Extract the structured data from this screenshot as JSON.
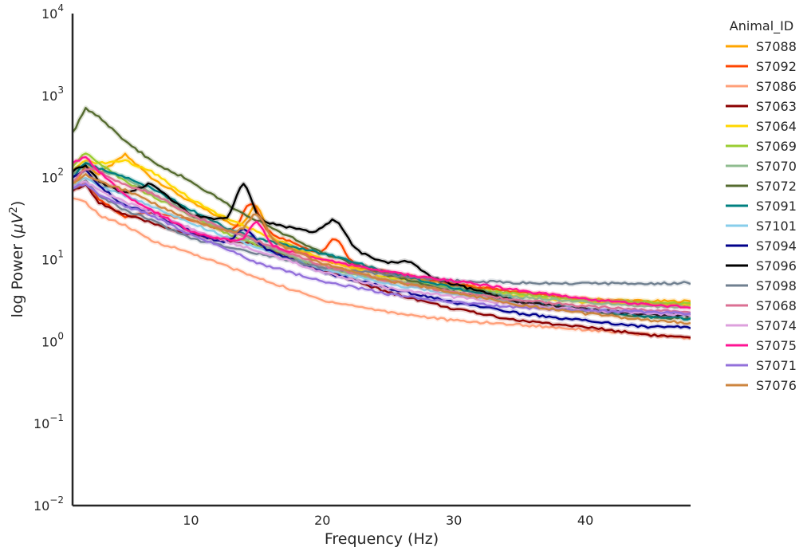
{
  "chart_data": {
    "type": "line",
    "title": "",
    "xlabel": "Frequency (Hz)",
    "ylabel_prefix": "log Power (",
    "ylabel_unit": "μV",
    "ylabel_exp": "2",
    "ylabel_suffix": ")",
    "xscale": "linear",
    "yscale": "log",
    "xlim": [
      1,
      48
    ],
    "ylim": [
      0.01,
      10000
    ],
    "grid": false,
    "legend_position": "outside-right",
    "x_ticks": [
      10,
      20,
      30,
      40
    ],
    "x_tick_labels": [
      "10",
      "20",
      "30",
      "40"
    ],
    "y_tick_base": "10",
    "y_tick_exps": [
      "−2",
      "−1",
      "0",
      "1",
      "2",
      "3",
      "4"
    ],
    "y_tick_values": [
      0.01,
      0.1,
      1,
      10,
      100,
      1000,
      10000
    ],
    "legend_title": "Animal_ID",
    "x_knots": [
      1,
      2,
      3,
      5,
      7,
      10,
      13,
      15,
      20,
      25,
      30,
      35,
      40,
      45,
      48
    ],
    "series": [
      {
        "name": "S7088",
        "color": "#FFA500",
        "y": [
          75,
          140,
          110,
          190,
          100,
          50,
          28,
          20,
          10,
          6.5,
          5,
          4,
          3.3,
          3.1,
          3.1
        ],
        "bumps": [
          {
            "x": 15,
            "w": 0.8,
            "a": 0.35
          }
        ]
      },
      {
        "name": "S7092",
        "color": "#FF4500",
        "y": [
          70,
          90,
          55,
          33,
          38,
          30,
          22,
          25,
          11,
          7,
          5,
          4,
          3.2,
          2.9,
          2.8
        ],
        "bumps": [
          {
            "x": 14.5,
            "w": 0.8,
            "a": 0.3
          },
          {
            "x": 21,
            "w": 0.8,
            "a": 0.25
          }
        ]
      },
      {
        "name": "S7086",
        "color": "#FFA07A",
        "y": [
          55,
          50,
          35,
          26,
          17,
          12,
          8,
          6,
          3.2,
          2.3,
          1.8,
          1.6,
          1.4,
          1.2,
          1.1
        ]
      },
      {
        "name": "S7063",
        "color": "#8B0000",
        "y": [
          70,
          80,
          50,
          35,
          28,
          20,
          17,
          15,
          7.5,
          4,
          2.5,
          1.8,
          1.5,
          1.2,
          1.1
        ]
      },
      {
        "name": "S7064",
        "color": "#FFD700",
        "y": [
          120,
          160,
          150,
          160,
          120,
          55,
          30,
          22,
          10,
          6,
          4.5,
          3.5,
          3,
          2.8,
          2.8
        ]
      },
      {
        "name": "S7069",
        "color": "#9ACD32",
        "y": [
          140,
          200,
          150,
          90,
          60,
          35,
          20,
          15,
          8,
          5.5,
          4.5,
          3.8,
          3.2,
          3,
          2.9
        ]
      },
      {
        "name": "S7070",
        "color": "#8FBC8F",
        "y": [
          110,
          150,
          120,
          100,
          65,
          35,
          22,
          16,
          8,
          5.5,
          4.5,
          3.5,
          3,
          2.7,
          2.6
        ]
      },
      {
        "name": "S7072",
        "color": "#556B2F",
        "y": [
          350,
          690,
          560,
          280,
          160,
          90,
          45,
          30,
          12,
          6.5,
          4,
          3,
          2.3,
          2,
          1.9
        ]
      },
      {
        "name": "S7091",
        "color": "#008080",
        "y": [
          100,
          150,
          130,
          100,
          75,
          40,
          23,
          18,
          12,
          7,
          4.5,
          3.2,
          2.5,
          2,
          1.9
        ]
      },
      {
        "name": "S7101",
        "color": "#87CEEB",
        "y": [
          80,
          100,
          80,
          60,
          45,
          28,
          18,
          14,
          7.5,
          5,
          3.8,
          3,
          2.5,
          2.2,
          2.1
        ]
      },
      {
        "name": "S7094",
        "color": "#00008B",
        "y": [
          100,
          120,
          80,
          45,
          38,
          22,
          15,
          15,
          7,
          4.5,
          3,
          2.2,
          1.8,
          1.5,
          1.5
        ],
        "bumps": [
          {
            "x": 14,
            "w": 0.9,
            "a": 0.2
          }
        ]
      },
      {
        "name": "S7096",
        "color": "#000000",
        "y": [
          120,
          140,
          90,
          65,
          85,
          35,
          30,
          30,
          20,
          8.5,
          5,
          3,
          2.5,
          2.1,
          2.1
        ],
        "bumps": [
          {
            "x": 14,
            "w": 0.8,
            "a": 0.45
          },
          {
            "x": 21,
            "w": 1.0,
            "a": 0.25
          },
          {
            "x": 26.5,
            "w": 1.2,
            "a": 0.12
          }
        ]
      },
      {
        "name": "S7098",
        "color": "#708090",
        "y": [
          75,
          90,
          60,
          40,
          30,
          18,
          14,
          12,
          8,
          6.5,
          5.5,
          5.2,
          5.1,
          5.1,
          5.2
        ]
      },
      {
        "name": "S7068",
        "color": "#DB7093",
        "y": [
          90,
          130,
          120,
          80,
          65,
          35,
          22,
          17,
          8.5,
          5.5,
          4,
          3.2,
          2.7,
          2.4,
          2.3
        ]
      },
      {
        "name": "S7074",
        "color": "#DDA0DD",
        "y": [
          75,
          90,
          70,
          50,
          38,
          24,
          16,
          13,
          7,
          4.5,
          3.5,
          2.8,
          2.4,
          2.2,
          2.1
        ]
      },
      {
        "name": "S7075",
        "color": "#FF1493",
        "y": [
          150,
          180,
          120,
          60,
          40,
          22,
          17,
          16,
          10,
          7,
          5.5,
          4.2,
          3.3,
          2.8,
          2.6
        ],
        "bumps": [
          {
            "x": 15,
            "w": 0.8,
            "a": 0.25
          }
        ]
      },
      {
        "name": "S7071",
        "color": "#9370DB",
        "y": [
          75,
          85,
          60,
          45,
          35,
          20,
          13,
          9,
          5.5,
          3.8,
          3,
          2.6,
          2.4,
          2.3,
          2.2
        ]
      },
      {
        "name": "S7076",
        "color": "#CD853F",
        "y": [
          85,
          110,
          90,
          70,
          50,
          30,
          22,
          20,
          9,
          5.5,
          4,
          2.8,
          2.2,
          1.8,
          1.7
        ],
        "bumps": [
          {
            "x": 15,
            "w": 0.9,
            "a": 0.25
          }
        ]
      }
    ]
  }
}
